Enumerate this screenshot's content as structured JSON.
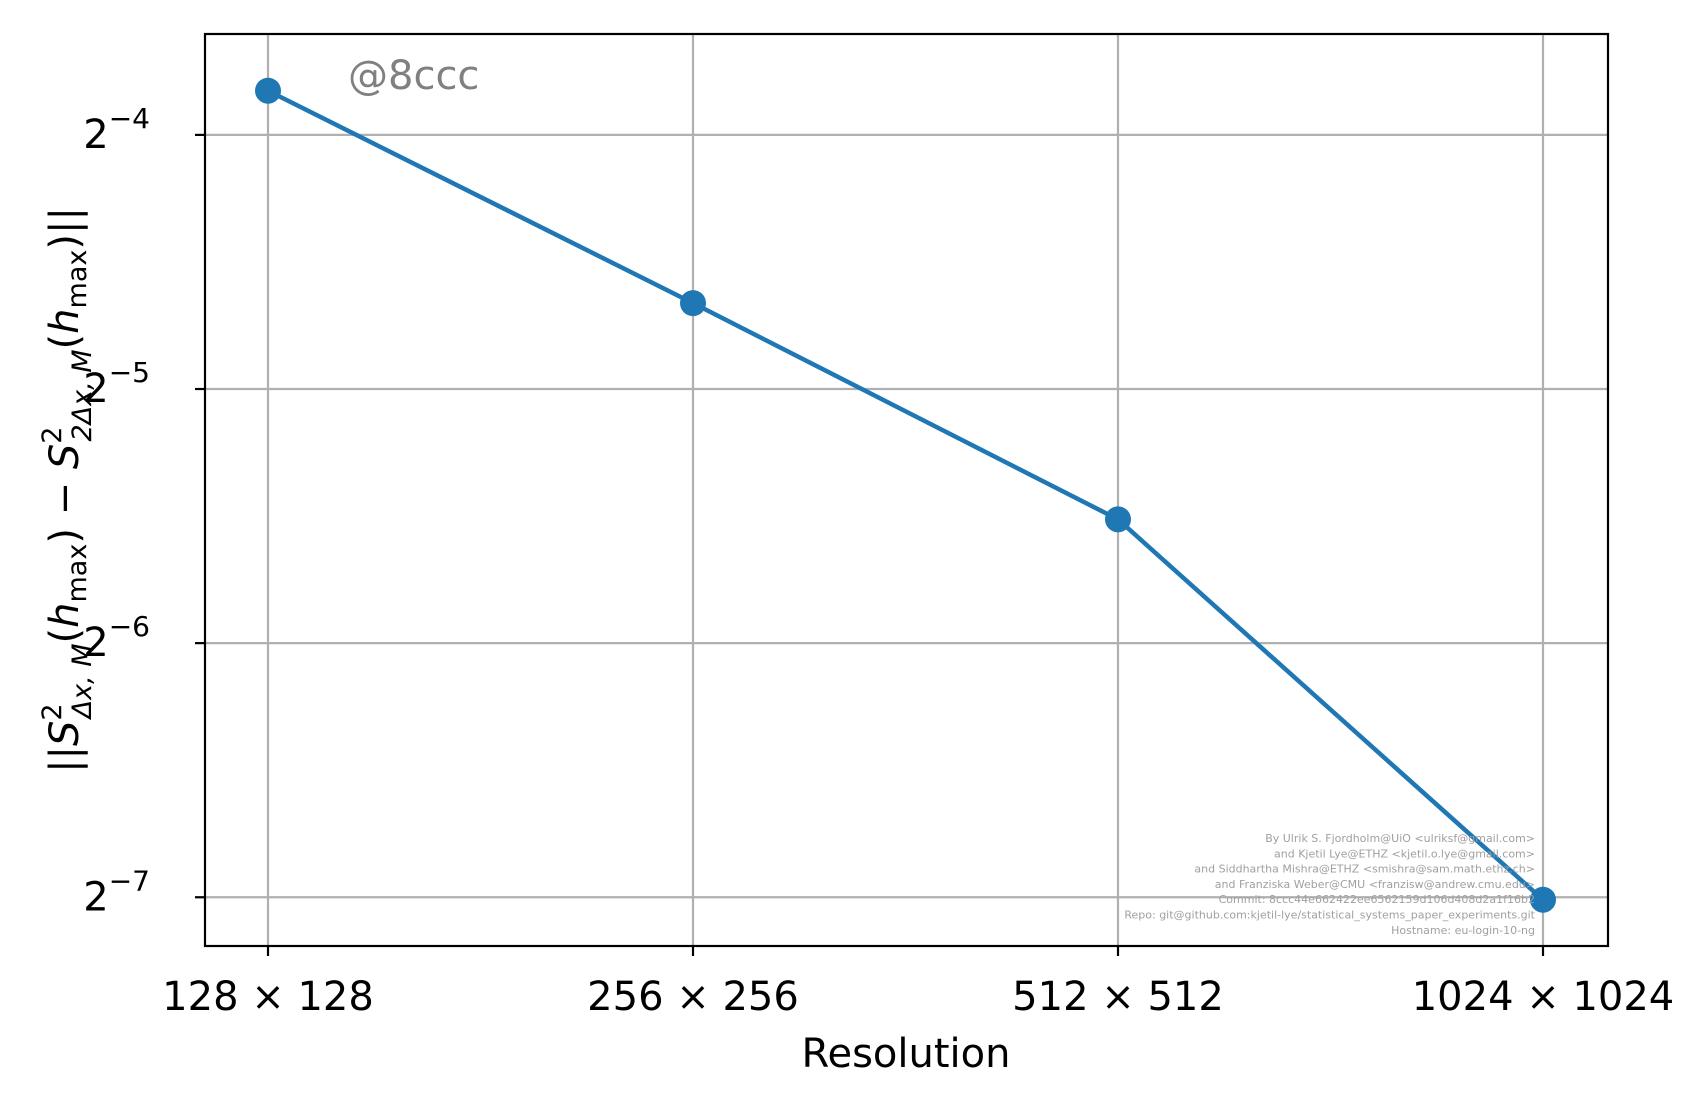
{
  "chart_data": {
    "type": "line",
    "categories": [
      "128 × 128",
      "256 × 256",
      "512 × 512",
      "1024 × 1024"
    ],
    "series": [
      {
        "values": [
          0.0705,
          0.0395,
          0.0219,
          0.00776
        ]
      }
    ],
    "xlabel": "Resolution",
    "ylabel_parts": {
      "open": "||",
      "s1": "S",
      "sup1": "2",
      "sub1": "Δx, M",
      "arg1_open": "(",
      "h1": "h",
      "hsub1": "max",
      "arg1_close": ")",
      "minus": " − ",
      "s2": "S",
      "sup2": "2",
      "sub2": "2Δx, M",
      "arg2_open": "(",
      "h2": "h",
      "hsub2": "max",
      "arg2_close": ")",
      "close": "||"
    },
    "yscale": "log2",
    "ylim": [
      0.00684,
      0.0823
    ],
    "yticks": [
      {
        "value": 0.0625,
        "base": "2",
        "exp": "−4"
      },
      {
        "value": 0.03125,
        "base": "2",
        "exp": "−5"
      },
      {
        "value": 0.015625,
        "base": "2",
        "exp": "−6"
      },
      {
        "value": 0.0078125,
        "base": "2",
        "exp": "−7"
      }
    ],
    "grid": true,
    "line_color": "#1f77b4",
    "stamp": "@8ccc",
    "credits": [
      "By Ulrik S. Fjordholm@UiO <ulriksf@gmail.com>",
      "and Kjetil Lye@ETHZ <kjetil.o.lye@gmail.com>",
      "and Siddhartha Mishra@ETHZ <smishra@sam.math.ethz.ch>",
      "and Franziska Weber@CMU <franzisw@andrew.cmu.edu>",
      "Commit: 8ccc44e662422ee6562159d106d408d2a1f16b2",
      "Repo: git@github.com:kjetil-lye/statistical_systems_paper_experiments.git",
      "Hostname: eu-login-10-ng"
    ]
  }
}
